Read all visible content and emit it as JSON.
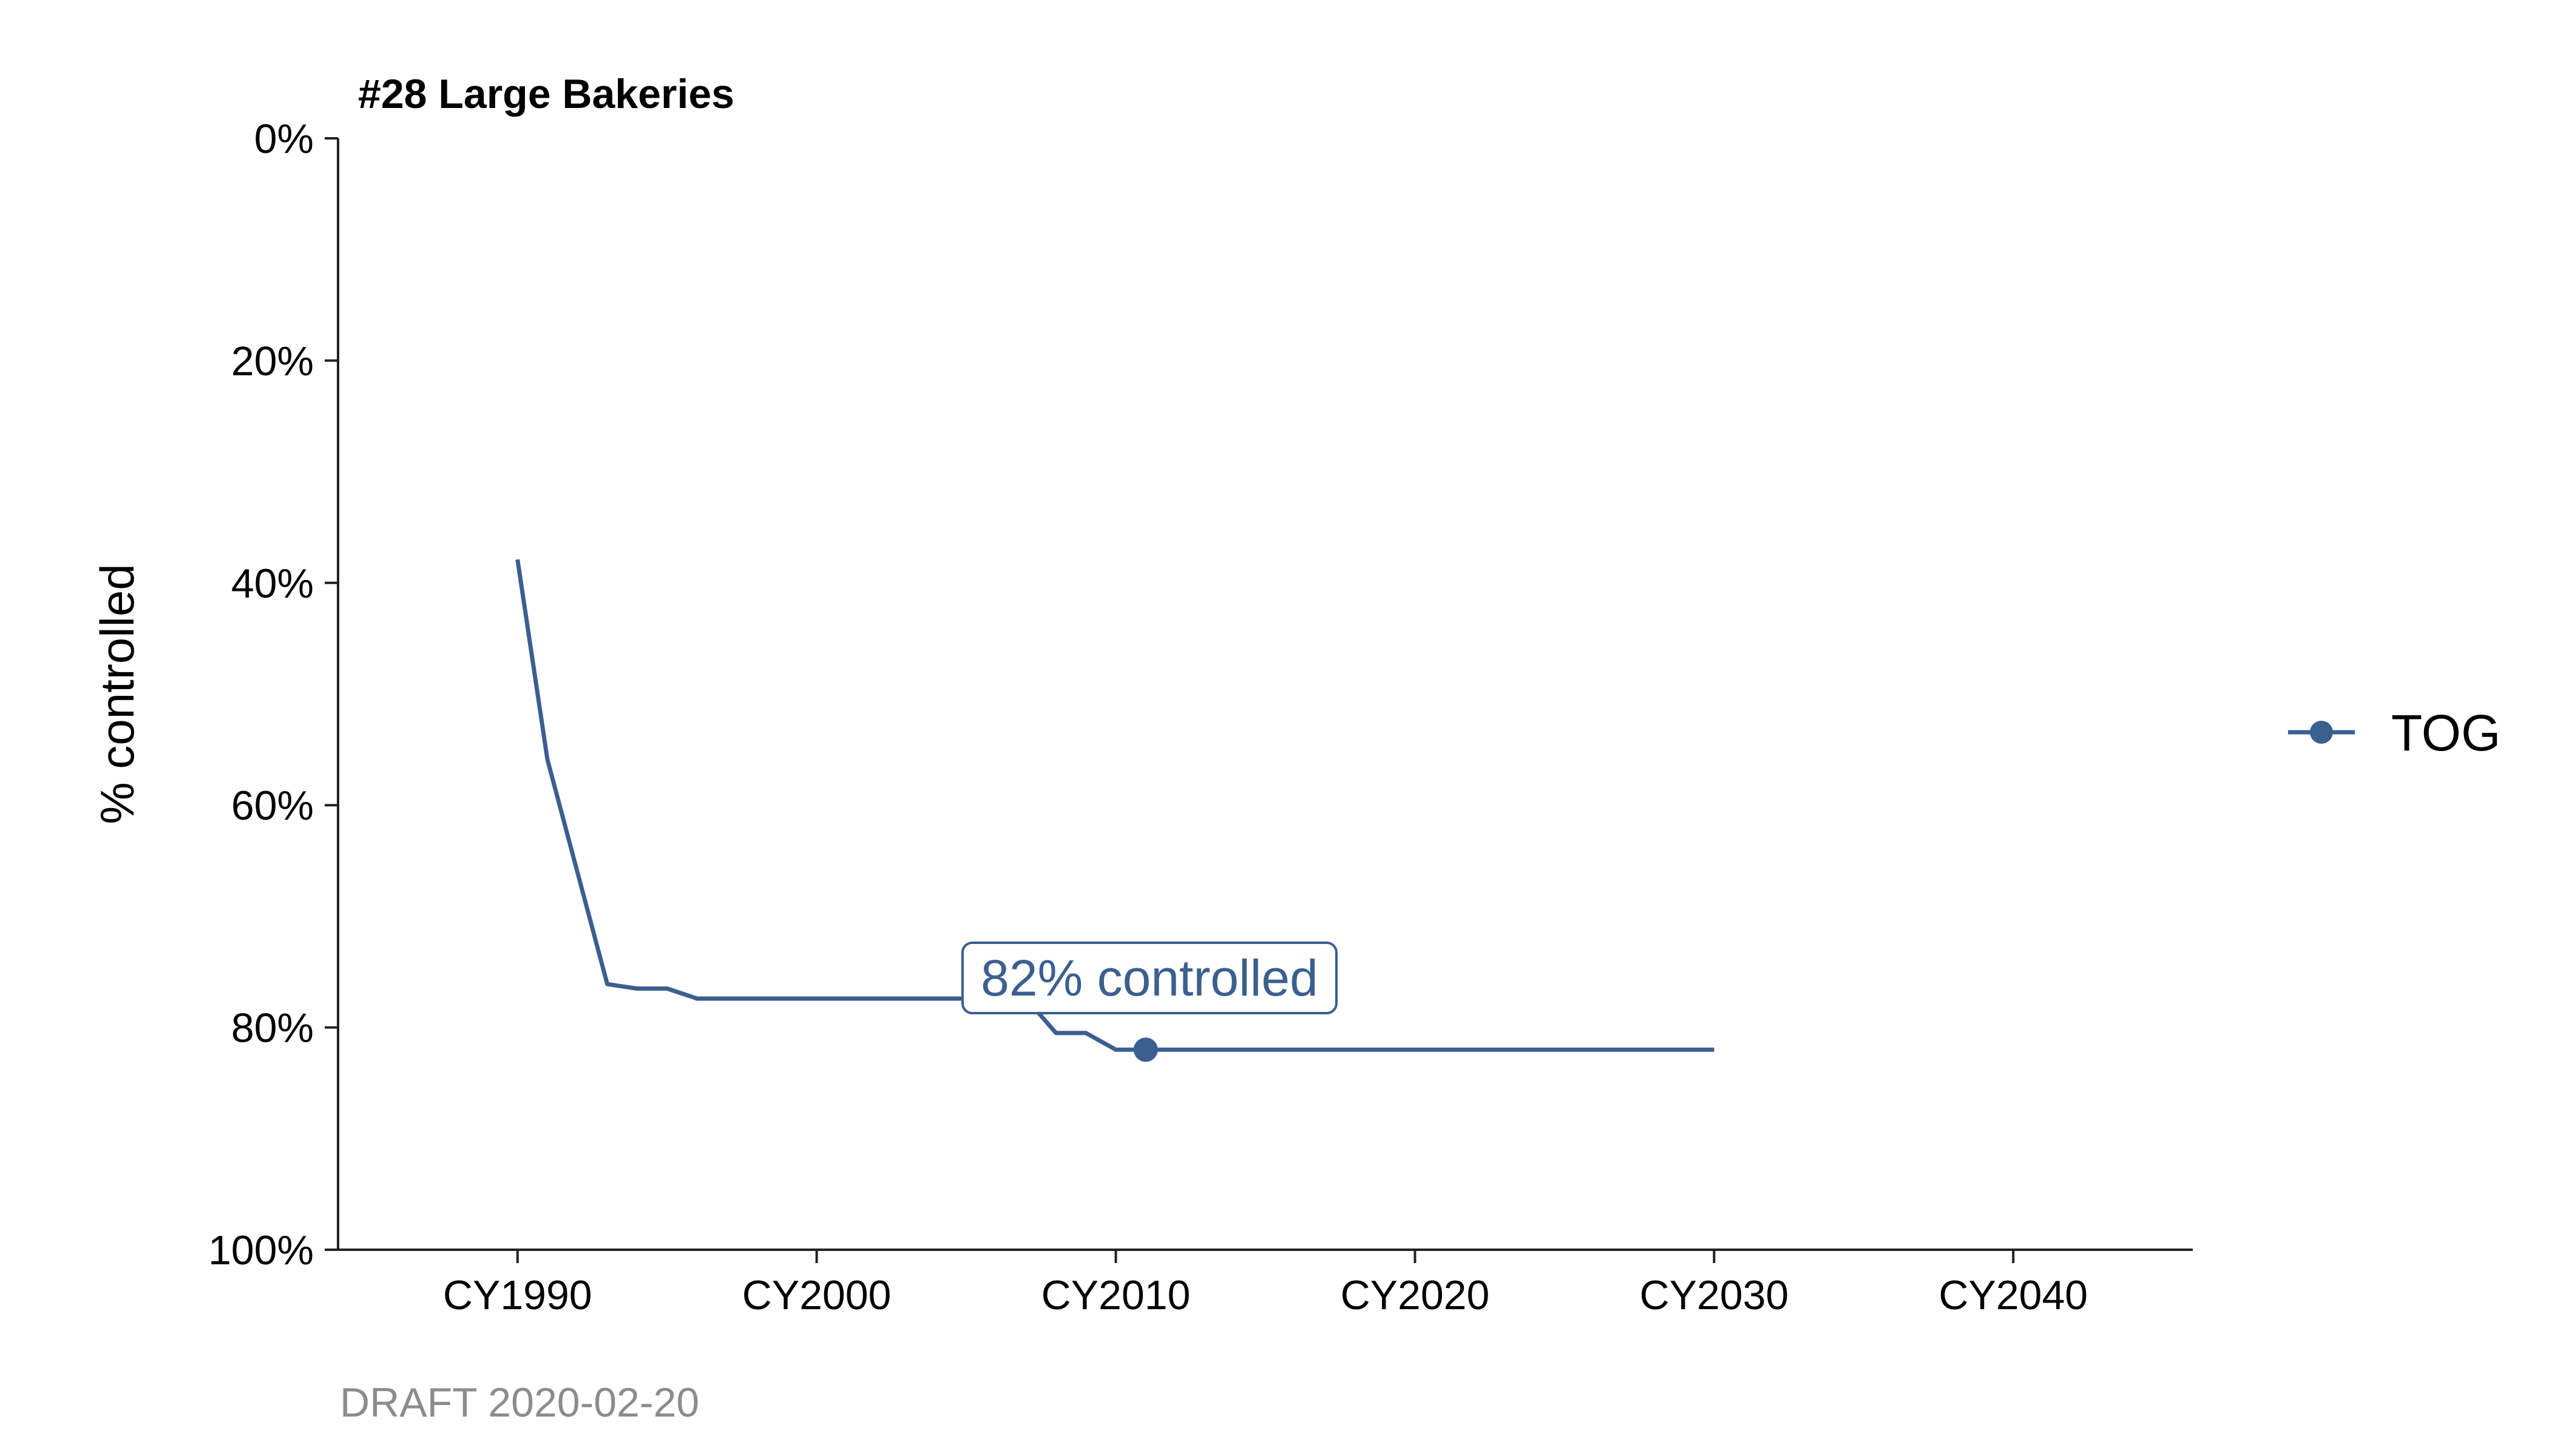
{
  "chart_data": {
    "type": "line",
    "title": "#28 Large Bakeries",
    "xlabel": "",
    "ylabel": "% controlled",
    "xlim": [
      1984,
      2046
    ],
    "ylim": [
      0,
      100
    ],
    "y_reversed": true,
    "x_ticks": [
      1990,
      2000,
      2010,
      2020,
      2030,
      2040
    ],
    "x_tick_labels": [
      "CY1990",
      "CY2000",
      "CY2010",
      "CY2020",
      "CY2030",
      "CY2040"
    ],
    "y_ticks": [
      0,
      20,
      40,
      60,
      80,
      100
    ],
    "y_tick_labels": [
      "0%",
      "20%",
      "40%",
      "60%",
      "80%",
      "100%"
    ],
    "grid": false,
    "legend_position": "right",
    "series": [
      {
        "name": "TOG",
        "color": "#3B5F8F",
        "x": [
          1990,
          1991,
          1992,
          1993,
          1994,
          1995,
          1996,
          1997,
          1998,
          1999,
          2000,
          2001,
          2002,
          2003,
          2004,
          2005,
          2006,
          2007,
          2008,
          2009,
          2010,
          2011,
          2012,
          2013,
          2014,
          2015,
          2016,
          2017,
          2018,
          2019,
          2020,
          2021,
          2022,
          2023,
          2024,
          2025,
          2026,
          2027,
          2028,
          2029,
          2030
        ],
        "y": [
          37.9,
          55.9,
          66.0,
          76.1,
          76.5,
          76.5,
          77.4,
          77.4,
          77.4,
          77.4,
          77.4,
          77.4,
          77.4,
          77.4,
          77.4,
          77.4,
          77.4,
          77.4,
          80.5,
          80.5,
          82.0,
          82.0,
          82.0,
          82.0,
          82.0,
          82.0,
          82.0,
          82.0,
          82.0,
          82.0,
          82.0,
          82.0,
          82.0,
          82.0,
          82.0,
          82.0,
          82.0,
          82.0,
          82.0,
          82.0,
          82.0
        ]
      }
    ],
    "highlight_point": {
      "x": 2011,
      "y": 82.0
    },
    "annotation": "82% controlled",
    "caption": "DRAFT 2020-02-20"
  }
}
